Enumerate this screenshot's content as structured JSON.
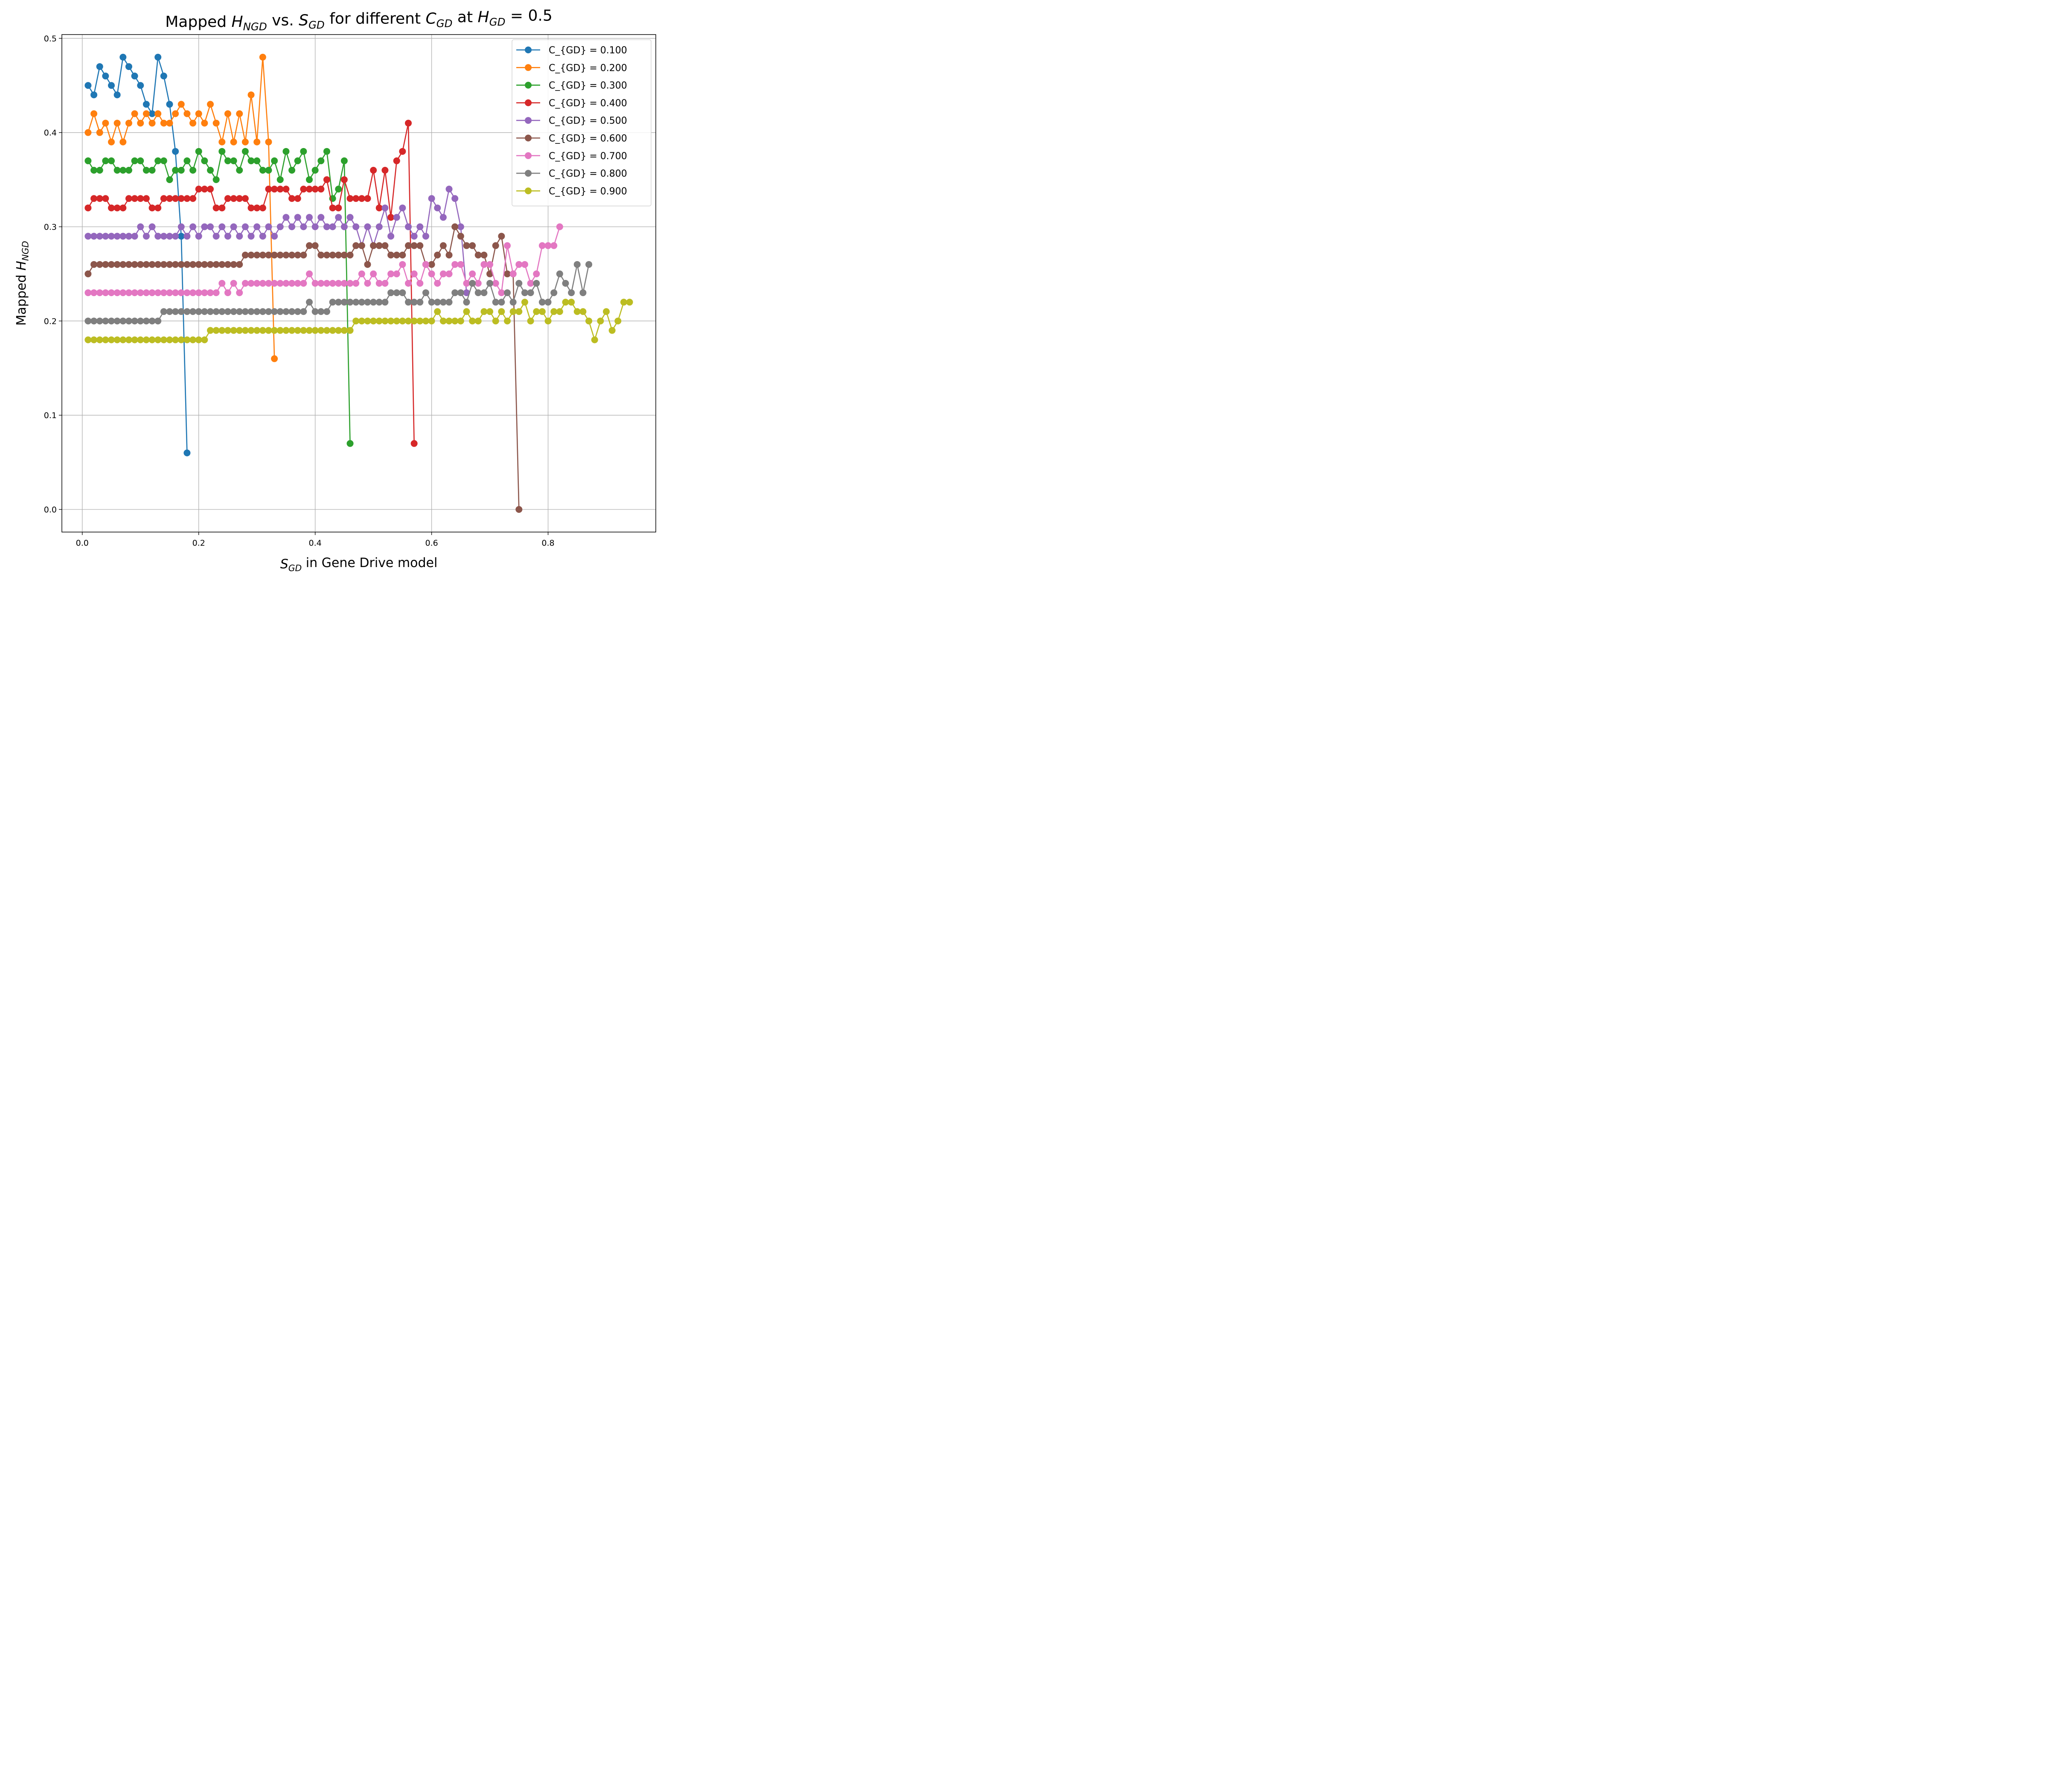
{
  "chart_data": {
    "type": "line",
    "title": {
      "parts": [
        {
          "text": "Mapped "
        },
        {
          "var": "H",
          "sub": "NGD"
        },
        {
          "text": " vs. "
        },
        {
          "var": "S",
          "sub": "GD"
        },
        {
          "text": " for different "
        },
        {
          "var": "C",
          "sub": "GD"
        },
        {
          "text": " at "
        },
        {
          "var": "H",
          "sub": "GD"
        },
        {
          "text": " = 0.5"
        }
      ]
    },
    "xlabel": {
      "parts": [
        {
          "var": "S",
          "sub": "GD"
        },
        {
          "text": " in Gene Drive model"
        }
      ]
    },
    "ylabel": {
      "parts": [
        {
          "text": "Mapped "
        },
        {
          "var": "H",
          "sub": "NGD"
        }
      ]
    },
    "xlim": [
      -0.035,
      0.985
    ],
    "ylim": [
      -0.024,
      0.504
    ],
    "xticks": [
      0.0,
      0.2,
      0.4,
      0.6,
      0.8
    ],
    "xtick_labels": [
      "0.0",
      "0.2",
      "0.4",
      "0.6",
      "0.8"
    ],
    "yticks": [
      0.0,
      0.1,
      0.2,
      0.3,
      0.4,
      0.5
    ],
    "ytick_labels": [
      "0.0",
      "0.1",
      "0.2",
      "0.3",
      "0.4",
      "0.5"
    ],
    "grid": true,
    "legend_position": "top-right",
    "marker": "circle",
    "x_start": 0.01,
    "x_step": 0.01,
    "series": [
      {
        "name": "C_{GD} = 0.100",
        "color": "#1f77b4",
        "values": [
          0.45,
          0.44,
          0.47,
          0.46,
          0.45,
          0.44,
          0.48,
          0.47,
          0.46,
          0.45,
          0.43,
          0.42,
          0.48,
          0.46,
          0.43,
          0.38,
          0.29,
          0.06
        ]
      },
      {
        "name": "C_{GD} = 0.200",
        "color": "#ff7f0e",
        "values": [
          0.4,
          0.42,
          0.4,
          0.41,
          0.39,
          0.41,
          0.39,
          0.41,
          0.42,
          0.41,
          0.42,
          0.41,
          0.42,
          0.41,
          0.41,
          0.42,
          0.43,
          0.42,
          0.41,
          0.42,
          0.41,
          0.43,
          0.41,
          0.39,
          0.42,
          0.39,
          0.42,
          0.39,
          0.44,
          0.39,
          0.48,
          0.39,
          0.16
        ]
      },
      {
        "name": "C_{GD} = 0.300",
        "color": "#2ca02c",
        "values": [
          0.37,
          0.36,
          0.36,
          0.37,
          0.37,
          0.36,
          0.36,
          0.36,
          0.37,
          0.37,
          0.36,
          0.36,
          0.37,
          0.37,
          0.35,
          0.36,
          0.36,
          0.37,
          0.36,
          0.38,
          0.37,
          0.36,
          0.35,
          0.38,
          0.37,
          0.37,
          0.36,
          0.38,
          0.37,
          0.37,
          0.36,
          0.36,
          0.37,
          0.35,
          0.38,
          0.36,
          0.37,
          0.38,
          0.35,
          0.36,
          0.37,
          0.38,
          0.33,
          0.34,
          0.37,
          0.07
        ]
      },
      {
        "name": "C_{GD} = 0.400",
        "color": "#d62728",
        "values": [
          0.32,
          0.33,
          0.33,
          0.33,
          0.32,
          0.32,
          0.32,
          0.33,
          0.33,
          0.33,
          0.33,
          0.32,
          0.32,
          0.33,
          0.33,
          0.33,
          0.33,
          0.33,
          0.33,
          0.34,
          0.34,
          0.34,
          0.32,
          0.32,
          0.33,
          0.33,
          0.33,
          0.33,
          0.32,
          0.32,
          0.32,
          0.34,
          0.34,
          0.34,
          0.34,
          0.33,
          0.33,
          0.34,
          0.34,
          0.34,
          0.34,
          0.35,
          0.32,
          0.32,
          0.35,
          0.33,
          0.33,
          0.33,
          0.33,
          0.36,
          0.32,
          0.36,
          0.31,
          0.37,
          0.38,
          0.41,
          0.07
        ]
      },
      {
        "name": "C_{GD} = 0.500",
        "color": "#9467bd",
        "values": [
          0.29,
          0.29,
          0.29,
          0.29,
          0.29,
          0.29,
          0.29,
          0.29,
          0.29,
          0.3,
          0.29,
          0.3,
          0.29,
          0.29,
          0.29,
          0.29,
          0.3,
          0.29,
          0.3,
          0.29,
          0.3,
          0.3,
          0.29,
          0.3,
          0.29,
          0.3,
          0.29,
          0.3,
          0.29,
          0.3,
          0.29,
          0.3,
          0.29,
          0.3,
          0.31,
          0.3,
          0.31,
          0.3,
          0.31,
          0.3,
          0.31,
          0.3,
          0.3,
          0.31,
          0.3,
          0.31,
          0.3,
          0.28,
          0.3,
          0.28,
          0.3,
          0.32,
          0.29,
          0.31,
          0.32,
          0.3,
          0.29,
          0.3,
          0.29,
          0.33,
          0.32,
          0.31,
          0.34,
          0.33,
          0.3,
          0.23
        ]
      },
      {
        "name": "C_{GD} = 0.600",
        "color": "#8c564b",
        "values": [
          0.25,
          0.26,
          0.26,
          0.26,
          0.26,
          0.26,
          0.26,
          0.26,
          0.26,
          0.26,
          0.26,
          0.26,
          0.26,
          0.26,
          0.26,
          0.26,
          0.26,
          0.26,
          0.26,
          0.26,
          0.26,
          0.26,
          0.26,
          0.26,
          0.26,
          0.26,
          0.26,
          0.27,
          0.27,
          0.27,
          0.27,
          0.27,
          0.27,
          0.27,
          0.27,
          0.27,
          0.27,
          0.27,
          0.28,
          0.28,
          0.27,
          0.27,
          0.27,
          0.27,
          0.27,
          0.27,
          0.28,
          0.28,
          0.26,
          0.28,
          0.28,
          0.28,
          0.27,
          0.27,
          0.27,
          0.28,
          0.28,
          0.28,
          0.26,
          0.26,
          0.27,
          0.28,
          0.27,
          0.3,
          0.29,
          0.28,
          0.28,
          0.27,
          0.27,
          0.25,
          0.28,
          0.29,
          0.25,
          0.25,
          0.0
        ]
      },
      {
        "name": "C_{GD} = 0.700",
        "color": "#e377c2",
        "values": [
          0.23,
          0.23,
          0.23,
          0.23,
          0.23,
          0.23,
          0.23,
          0.23,
          0.23,
          0.23,
          0.23,
          0.23,
          0.23,
          0.23,
          0.23,
          0.23,
          0.23,
          0.23,
          0.23,
          0.23,
          0.23,
          0.23,
          0.23,
          0.24,
          0.23,
          0.24,
          0.23,
          0.24,
          0.24,
          0.24,
          0.24,
          0.24,
          0.24,
          0.24,
          0.24,
          0.24,
          0.24,
          0.24,
          0.25,
          0.24,
          0.24,
          0.24,
          0.24,
          0.24,
          0.24,
          0.24,
          0.24,
          0.25,
          0.24,
          0.25,
          0.24,
          0.24,
          0.25,
          0.25,
          0.26,
          0.24,
          0.25,
          0.24,
          0.26,
          0.25,
          0.24,
          0.25,
          0.25,
          0.26,
          0.26,
          0.24,
          0.25,
          0.24,
          0.26,
          0.26,
          0.24,
          0.23,
          0.28,
          0.25,
          0.26,
          0.26,
          0.24,
          0.25,
          0.28,
          0.28,
          0.28,
          0.3
        ]
      },
      {
        "name": "C_{GD} = 0.800",
        "color": "#7f7f7f",
        "values": [
          0.2,
          0.2,
          0.2,
          0.2,
          0.2,
          0.2,
          0.2,
          0.2,
          0.2,
          0.2,
          0.2,
          0.2,
          0.2,
          0.21,
          0.21,
          0.21,
          0.21,
          0.21,
          0.21,
          0.21,
          0.21,
          0.21,
          0.21,
          0.21,
          0.21,
          0.21,
          0.21,
          0.21,
          0.21,
          0.21,
          0.21,
          0.21,
          0.21,
          0.21,
          0.21,
          0.21,
          0.21,
          0.21,
          0.22,
          0.21,
          0.21,
          0.21,
          0.22,
          0.22,
          0.22,
          0.22,
          0.22,
          0.22,
          0.22,
          0.22,
          0.22,
          0.22,
          0.23,
          0.23,
          0.23,
          0.22,
          0.22,
          0.22,
          0.23,
          0.22,
          0.22,
          0.22,
          0.22,
          0.23,
          0.23,
          0.22,
          0.24,
          0.23,
          0.23,
          0.24,
          0.22,
          0.22,
          0.23,
          0.22,
          0.24,
          0.23,
          0.23,
          0.24,
          0.22,
          0.22,
          0.23,
          0.25,
          0.24,
          0.23,
          0.26,
          0.23,
          0.26
        ]
      },
      {
        "name": "C_{GD} = 0.900",
        "color": "#bcbd22",
        "values": [
          0.18,
          0.18,
          0.18,
          0.18,
          0.18,
          0.18,
          0.18,
          0.18,
          0.18,
          0.18,
          0.18,
          0.18,
          0.18,
          0.18,
          0.18,
          0.18,
          0.18,
          0.18,
          0.18,
          0.18,
          0.18,
          0.19,
          0.19,
          0.19,
          0.19,
          0.19,
          0.19,
          0.19,
          0.19,
          0.19,
          0.19,
          0.19,
          0.19,
          0.19,
          0.19,
          0.19,
          0.19,
          0.19,
          0.19,
          0.19,
          0.19,
          0.19,
          0.19,
          0.19,
          0.19,
          0.19,
          0.2,
          0.2,
          0.2,
          0.2,
          0.2,
          0.2,
          0.2,
          0.2,
          0.2,
          0.2,
          0.2,
          0.2,
          0.2,
          0.2,
          0.21,
          0.2,
          0.2,
          0.2,
          0.2,
          0.21,
          0.2,
          0.2,
          0.21,
          0.21,
          0.2,
          0.21,
          0.2,
          0.21,
          0.21,
          0.22,
          0.2,
          0.21,
          0.21,
          0.2,
          0.21,
          0.21,
          0.22,
          0.22,
          0.21,
          0.21,
          0.2,
          0.18,
          0.2,
          0.21,
          0.19,
          0.2,
          0.22,
          0.22
        ]
      }
    ]
  }
}
